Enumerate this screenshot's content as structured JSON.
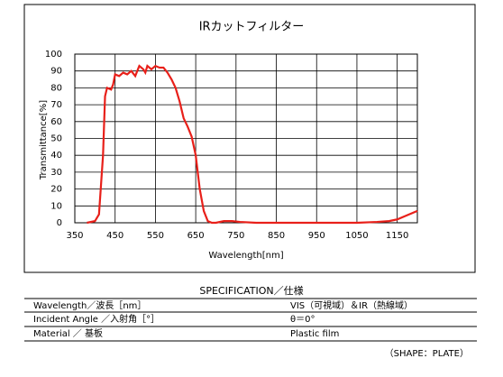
{
  "chart_data": {
    "type": "line",
    "title": "IRカットフィルター",
    "x_label": "Wavelength[nm]",
    "y_label": "Transmittance[%]",
    "xlim": [
      350,
      1200
    ],
    "xticks": [
      350,
      450,
      550,
      650,
      750,
      850,
      950,
      1050,
      1150
    ],
    "ylim": [
      0,
      100
    ],
    "yticks": [
      0,
      10,
      20,
      30,
      40,
      50,
      60,
      70,
      80,
      90,
      100
    ],
    "grid": true,
    "series": [
      {
        "color": "#e8201a",
        "x": [
          380,
          400,
          410,
          420,
          425,
          430,
          440,
          445,
          450,
          460,
          470,
          480,
          490,
          500,
          510,
          520,
          525,
          530,
          540,
          550,
          560,
          570,
          580,
          590,
          600,
          610,
          620,
          630,
          640,
          650,
          660,
          670,
          680,
          690,
          700,
          720,
          740,
          760,
          800,
          1050,
          1100,
          1130,
          1150,
          1170,
          1200
        ],
        "values": [
          0,
          1,
          5,
          40,
          75,
          80,
          79,
          82,
          88,
          87,
          89,
          88,
          90,
          87,
          93,
          91,
          89,
          93,
          91,
          93,
          92,
          92,
          89,
          85,
          80,
          72,
          62,
          57,
          51,
          40,
          20,
          7,
          1,
          0,
          0,
          1,
          1,
          0.5,
          0,
          0,
          0.5,
          1,
          2,
          4,
          7
        ]
      }
    ]
  },
  "specification": {
    "title": "SPECIFICATION／仕様",
    "rows": [
      [
        "Wavelength／波長［nm］",
        "VIS（可視域）＆IR（熱線域）"
      ],
      [
        "Incident Angle ／入射角［°］",
        "θ＝0°"
      ],
      [
        "Material ／ 基板",
        "Plastic film"
      ]
    ],
    "note": "（SHAPE：PLATE）"
  }
}
